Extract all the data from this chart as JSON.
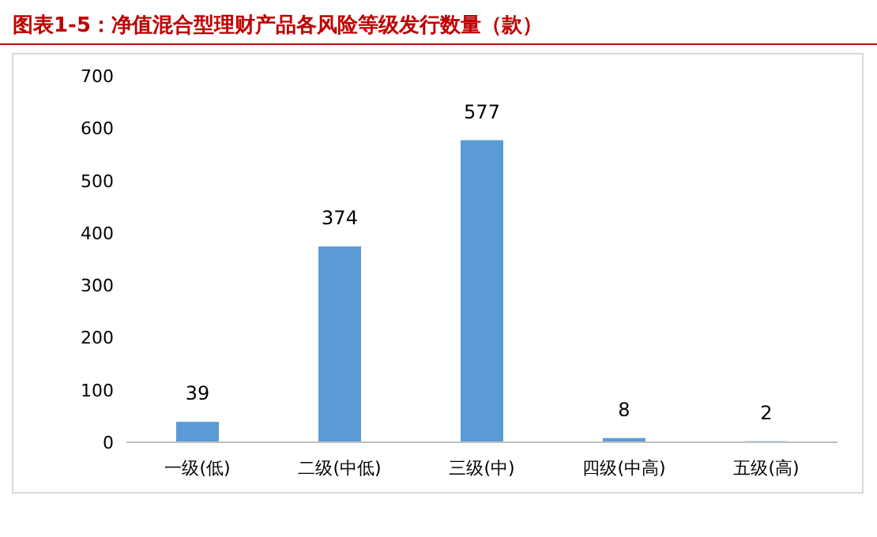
{
  "chart_data": {
    "type": "bar",
    "title": "图表1-5：净值混合型理财产品各风险等级发行数量（款）",
    "categories": [
      "一级(低)",
      "二级(中低)",
      "三级(中)",
      "四级(中高)",
      "五级(高)"
    ],
    "values": [
      39,
      374,
      577,
      8,
      2
    ],
    "color": "#5b9bd5",
    "ylim": [
      0,
      700
    ],
    "yticks": [
      0,
      100,
      200,
      300,
      400,
      500,
      600,
      700
    ],
    "data_labels": true
  }
}
